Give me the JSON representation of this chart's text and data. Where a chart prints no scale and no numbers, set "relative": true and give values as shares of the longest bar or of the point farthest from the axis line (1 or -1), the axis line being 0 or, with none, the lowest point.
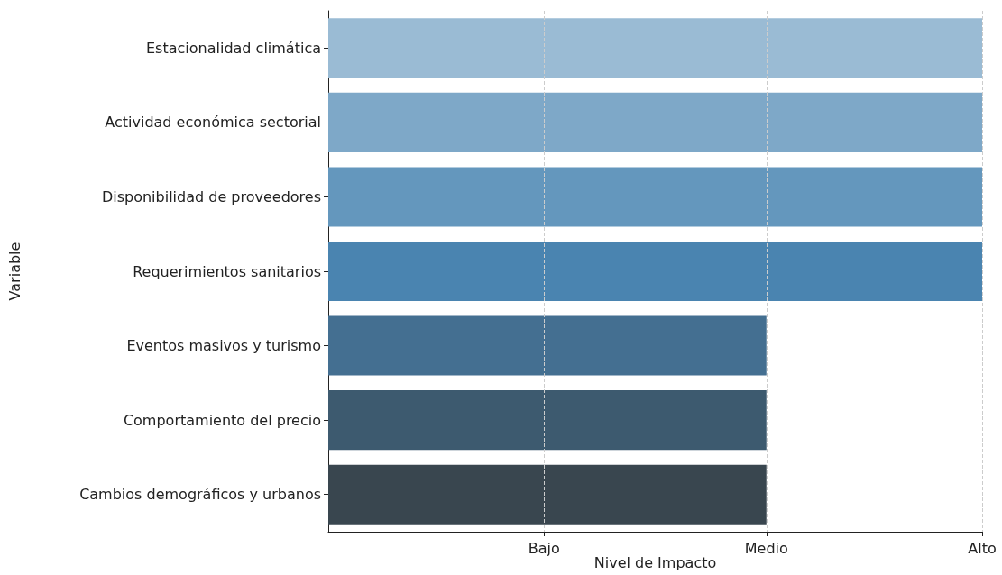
{
  "chart_data": {
    "type": "bar",
    "orientation": "horizontal",
    "relative": true,
    "xlabel": "Nivel de Impacto",
    "ylabel": "Variable",
    "categories": [
      "Estacionalidad climática",
      "Actividad económica sectorial",
      "Disponibilidad de proveedores",
      "Requerimientos sanitarios",
      "Eventos masivos y turismo",
      "Comportamiento del precio",
      "Cambios demográficos y urbanos"
    ],
    "values": [
      1,
      1,
      1,
      1,
      0.67,
      0.67,
      0.67
    ],
    "colors": [
      "#9abbd4",
      "#7ea8c8",
      "#6497bd",
      "#4a84b0",
      "#446f91",
      "#3d5a6f",
      "#39464f"
    ],
    "ref_lines": [
      {
        "axis": "x",
        "value": 0.33,
        "label": "Bajo",
        "line_style": "dashed",
        "color": "#cccccc"
      },
      {
        "axis": "x",
        "value": 0.67,
        "label": "Medio",
        "line_style": "dashed",
        "color": "#cccccc"
      },
      {
        "axis": "x",
        "value": 1,
        "label": "Alto",
        "line_style": "dashed",
        "color": "#cccccc"
      }
    ]
  }
}
